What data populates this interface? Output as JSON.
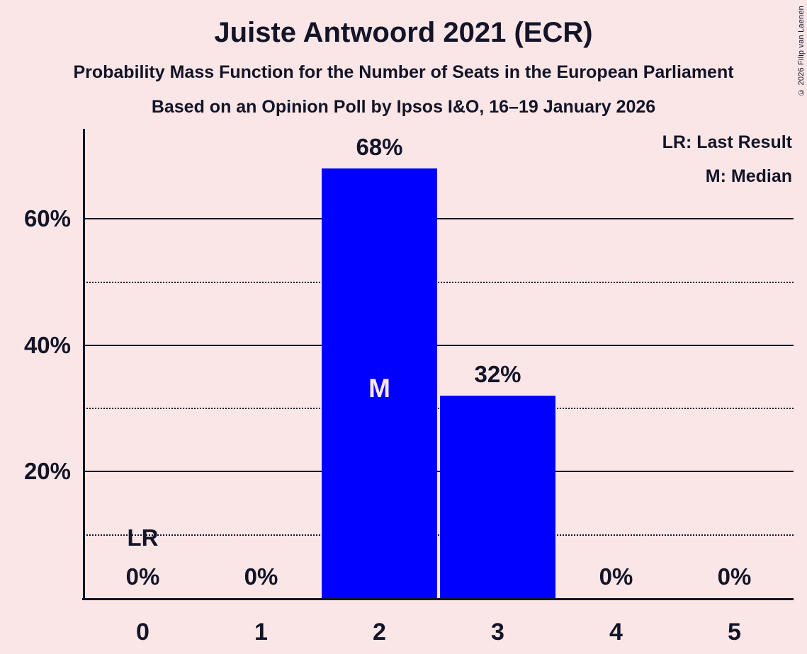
{
  "header": {
    "title": "Juiste Antwoord 2021 (ECR)",
    "subtitle1": "Probability Mass Function for the Number of Seats in the European Parliament",
    "subtitle2": "Based on an Opinion Poll by Ipsos I&O, 16–19 January 2026"
  },
  "legend": {
    "last_result": "LR: Last Result",
    "median": "M: Median"
  },
  "copyright": "© 2026 Filip van Laenen",
  "colors": {
    "background": "#fae6e6",
    "bar": "#0000ff",
    "ink": "#131428"
  },
  "chart_data": {
    "type": "bar",
    "title": "Juiste Antwoord 2021 (ECR)",
    "categories": [
      "0",
      "1",
      "2",
      "3",
      "4",
      "5"
    ],
    "values": [
      0,
      0,
      68,
      32,
      0,
      0
    ],
    "value_labels": [
      "0%",
      "0%",
      "68%",
      "32%",
      "0%",
      "0%"
    ],
    "xlabel": "",
    "ylabel": "",
    "ylim": [
      0,
      74
    ],
    "y_major_ticks": [
      20,
      40,
      60
    ],
    "y_major_tick_labels": [
      "20%",
      "40%",
      "60%"
    ],
    "y_minor_ticks": [
      10,
      30,
      50
    ],
    "grid": "horizontal",
    "legend_position": "top-right",
    "annotations": {
      "median_label": "M",
      "median_category": "2",
      "last_result_label": "LR",
      "last_result_category": "0"
    }
  }
}
